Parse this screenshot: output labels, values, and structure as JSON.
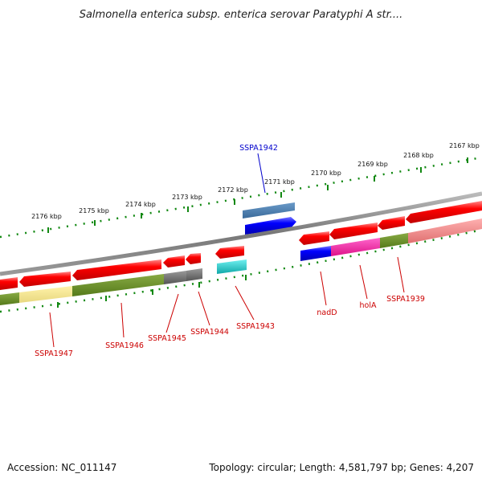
{
  "title": "Salmonella enterica subsp. enterica serovar Paratyphi A str....",
  "footer": {
    "accession": "Accession: NC_011147",
    "summary": "Topology: circular; Length: 4,581,797 bp; Genes: 4,207"
  },
  "scale_labels": [
    "2176 kbp",
    "2175 kbp",
    "2174 kbp",
    "2173 kbp",
    "2172 kbp",
    "2171 kbp",
    "2170 kbp",
    "2169 kbp",
    "2168 kbp",
    "2167 kbp"
  ],
  "gene_labels": [
    {
      "name": "SSPA1942",
      "color": "#0000cc"
    },
    {
      "name": "SSPA1947",
      "color": "#cc0000"
    },
    {
      "name": "SSPA1946",
      "color": "#cc0000"
    },
    {
      "name": "SSPA1945",
      "color": "#cc0000"
    },
    {
      "name": "SSPA1944",
      "color": "#cc0000"
    },
    {
      "name": "SSPA1943",
      "color": "#cc0000"
    },
    {
      "name": "nadD",
      "color": "#cc0000"
    },
    {
      "name": "holA",
      "color": "#cc0000"
    },
    {
      "name": "SSPA1939",
      "color": "#cc0000"
    }
  ],
  "colors": {
    "forward_cds": "#0000ee",
    "reverse_cds": "#ee0000",
    "backbone": "#888888",
    "tick": "#118811",
    "cog_blue_grey": "#4a7fb0",
    "cog_olive": "#6b8e23",
    "cog_khaki": "#f0e68c",
    "cog_grey": "#707070",
    "cog_cyan": "#20c0c0",
    "cog_blue": "#0000ee",
    "cog_magenta": "#ee1493",
    "cog_salmon": "#f08080"
  }
}
